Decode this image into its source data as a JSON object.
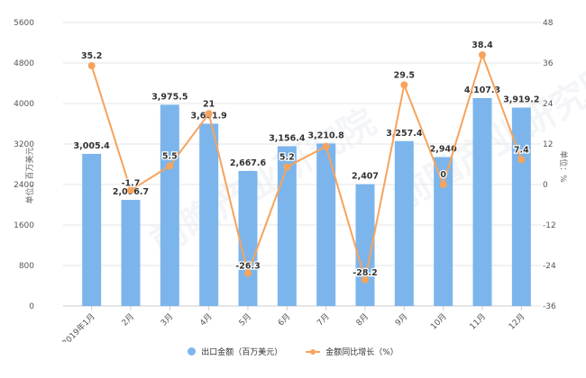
{
  "chart_data": {
    "type": "bar+line",
    "title": "",
    "categories": [
      "2019年1月",
      "2月",
      "3月",
      "4月",
      "5月",
      "6月",
      "7月",
      "8月",
      "9月",
      "10月",
      "11月",
      "12月"
    ],
    "series": [
      {
        "name": "出口金额（百万美元）",
        "type": "bar",
        "axis": "left",
        "color": "#7cb5ec",
        "values": [
          3005.4,
          2096.7,
          3975.5,
          3601.9,
          2667.6,
          3156.4,
          3210.8,
          2407,
          3257.4,
          2940,
          4107.3,
          3919.2
        ],
        "labels": [
          "3,005.4",
          "2,096.7",
          "3,975.5",
          "3,601.9",
          "2,667.6",
          "3,156.4",
          "3,210.8",
          "2,407",
          "3,257.4",
          "2,940",
          "4,107.3",
          "3,919.2"
        ]
      },
      {
        "name": "金额同比增长（%）",
        "type": "line",
        "axis": "right",
        "color": "#f7a35c",
        "values": [
          35.2,
          -1.7,
          5.5,
          21,
          -26.3,
          5.2,
          11.3,
          -28.2,
          29.5,
          0,
          38.4,
          7.4
        ],
        "labels": [
          "35.2",
          "-1.7",
          "5.5",
          "21",
          "-26.3",
          "5.2",
          "",
          "-28.2",
          "29.5",
          "0",
          "38.4",
          "7.4"
        ]
      }
    ],
    "y_left": {
      "label": "单位：百万美元",
      "ticks": [
        0,
        800,
        1600,
        2400,
        3200,
        4000,
        4800,
        5600
      ],
      "ylim": [
        0,
        5600
      ]
    },
    "y_right": {
      "label": "单位：%",
      "ticks": [
        -36,
        -24,
        -12,
        0,
        12,
        24,
        36,
        48
      ],
      "ylim": [
        -36,
        48
      ]
    },
    "grid": true,
    "legend_position": "bottom"
  },
  "legend": {
    "items": [
      {
        "label": "出口金额（百万美元）",
        "color": "#7cb5ec",
        "shape": "circle"
      },
      {
        "label": "金额同比增长（%）",
        "color": "#f7a35c",
        "shape": "line-marker"
      }
    ]
  },
  "watermark": {
    "text": "前瞻产业研究院"
  }
}
